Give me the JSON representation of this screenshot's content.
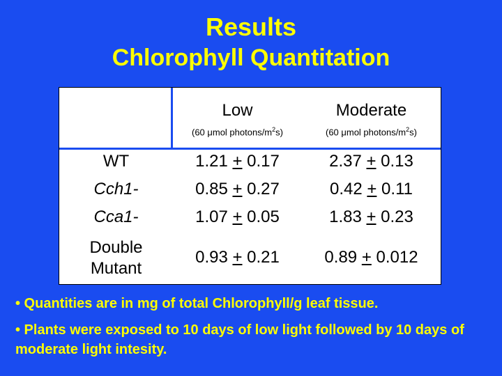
{
  "title": "Results",
  "subtitle": "Chlorophyll Quantitation",
  "table": {
    "columns": [
      {
        "label": "Low",
        "sub_prefix": "(60 μmol photons/m",
        "sub_sup": "2",
        "sub_suffix": "s)"
      },
      {
        "label": "Moderate",
        "sub_prefix": "(60 μmol photons/m",
        "sub_sup": "2",
        "sub_suffix": "s)"
      }
    ],
    "rows": [
      {
        "label": "WT",
        "low": [
          "1.21 ",
          "+",
          " 0.17"
        ],
        "moderate": [
          "2.37 ",
          "+",
          " 0.13"
        ]
      },
      {
        "label": "Cch1-",
        "low": [
          "0.85 ",
          "+",
          " 0.27"
        ],
        "moderate": [
          "0.42 ",
          "+",
          " 0.11"
        ]
      },
      {
        "label": "Cca1-",
        "low": [
          "1.07 ",
          "+",
          " 0.05"
        ],
        "moderate": [
          "1.83 ",
          "+",
          " 0.23"
        ]
      },
      {
        "label_line1": "Double",
        "label_line2": "Mutant",
        "low": [
          "0.93 ",
          "+",
          " 0.21"
        ],
        "moderate": [
          "0.89 ",
          "+",
          " 0.012"
        ]
      }
    ]
  },
  "notes": [
    "• Quantities are in mg of total Chlorophyll/g leaf tissue.",
    "• Plants were exposed to 10 days of low light followed by 10 days of moderate light intesity."
  ]
}
